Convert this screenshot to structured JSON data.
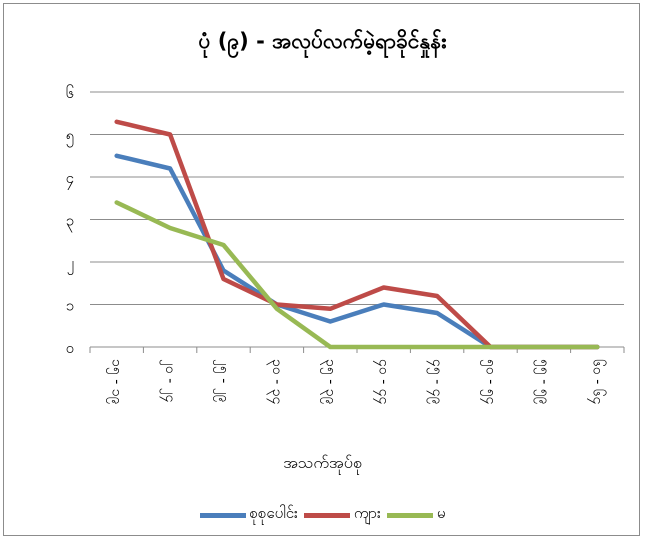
{
  "chart_data": {
    "type": "line",
    "title": "ပုံ (၉) - အလုပ်လက်မဲ့ရာခိုင်နှုန်း",
    "xlabel": "အသက်အုပ်စု",
    "ylabel": "",
    "categories": [
      "၁၅ - ၁၉",
      "၂၀ - ၂၄",
      "၂၅ - ၂၉",
      "၃၀ - ၃၄",
      "၃၅ - ၃၉",
      "၄၀ - ၄၄",
      "၄၅ - ၄၉",
      "၅၀ - ၅၄",
      "၅၅ - ၅၉",
      "၆၀ - ၆၄"
    ],
    "yticks": [
      "၀",
      "၁",
      "၂",
      "၃",
      "၄",
      "၅",
      "၆"
    ],
    "ylim": [
      0,
      6
    ],
    "grid": true,
    "legend_position": "bottom",
    "series": [
      {
        "name": "စုစုပေါင်း",
        "color": "#4a7ebb",
        "values": [
          4.5,
          4.2,
          1.8,
          1.0,
          0.6,
          1.0,
          0.8,
          0.0,
          0.0,
          0.0
        ]
      },
      {
        "name": "ကျား",
        "color": "#be4b48",
        "values": [
          5.3,
          5.0,
          1.6,
          1.0,
          0.9,
          1.4,
          1.2,
          0.0,
          0.0,
          0.0
        ]
      },
      {
        "name": "မ",
        "color": "#98b954",
        "values": [
          3.4,
          2.8,
          2.4,
          0.9,
          0.0,
          0.0,
          0.0,
          0.0,
          0.0,
          0.0
        ]
      }
    ]
  }
}
